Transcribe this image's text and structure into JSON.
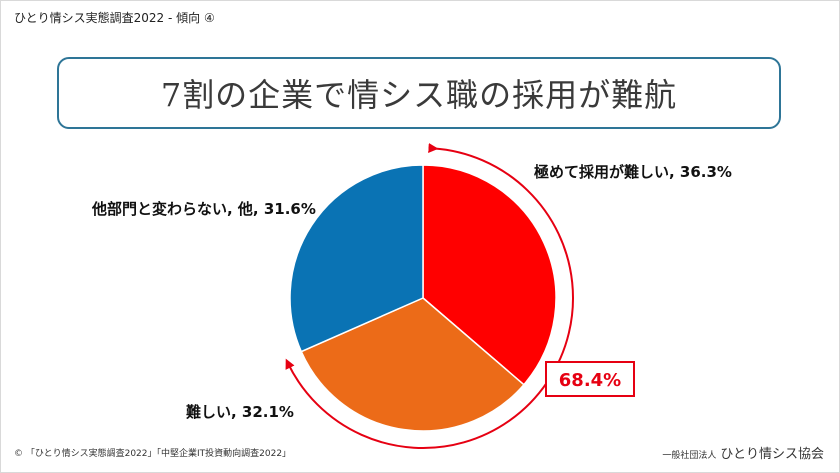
{
  "header": {
    "text": "ひとり情シス実態調査2022  - 傾向 ④"
  },
  "title": "7割の企業で情シス職の採用が難航",
  "chart_data": {
    "type": "pie",
    "title": "7割の企業で情シス職の採用が難航",
    "slices": [
      {
        "label": "極めて採用が難しい",
        "value": 36.3,
        "color": "#ff0000",
        "display": "極めて採用が難しい, 36.3%"
      },
      {
        "label": "難しい",
        "value": 32.1,
        "color": "#ec6b18",
        "display": "難しい, 32.1%"
      },
      {
        "label": "他部門と変わらない, 他",
        "value": 31.6,
        "color": "#0a73b4",
        "display": "他部門と変わらない, 他, 31.6%"
      }
    ],
    "start_angle": "12 o'clock, clockwise",
    "annotation": {
      "text": "68.4%",
      "color": "#e60012"
    }
  },
  "footer": {
    "left": "© 「ひとり情シス実態調査2022」「中堅企業IT投資動向調査2022」",
    "org_prefix": "一般社団法人",
    "org_name": "ひとり情シス協会"
  }
}
